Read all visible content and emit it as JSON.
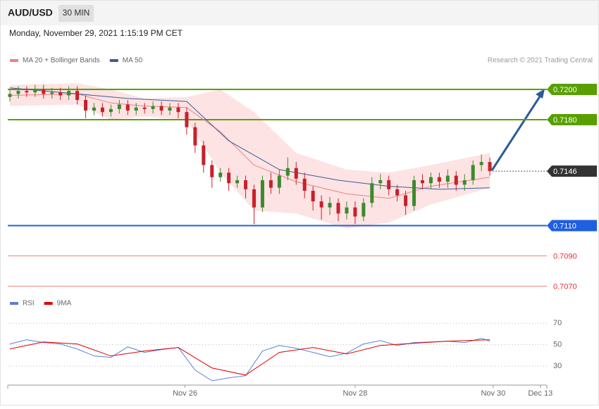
{
  "header": {
    "symbol": "AUD/USD",
    "interval": "30 MIN",
    "timestamp": "Monday, November 29, 2021 1:15:19 PM CET",
    "credit": "Research © 2021 Trading Central"
  },
  "chart_data": [
    {
      "type": "candlestick",
      "x": [
        0,
        1,
        2,
        3,
        4,
        5,
        6,
        7,
        8,
        9,
        10,
        11,
        12,
        13,
        14,
        15,
        16,
        17,
        18,
        19,
        20,
        21,
        22,
        23,
        24,
        25,
        26,
        27,
        28,
        29,
        30,
        31,
        32,
        33,
        34,
        35,
        36,
        37,
        38,
        39,
        40,
        41,
        42,
        43,
        44,
        45,
        46,
        47,
        48,
        49,
        50,
        51,
        52,
        53,
        54,
        55,
        56,
        57
      ],
      "open": [
        0.7195,
        0.7197,
        0.7199,
        0.7198,
        0.72,
        0.7197,
        0.7198,
        0.7196,
        0.7199,
        0.7193,
        0.7186,
        0.7188,
        0.7185,
        0.7187,
        0.719,
        0.7186,
        0.7188,
        0.7187,
        0.7189,
        0.7186,
        0.7188,
        0.7185,
        0.7175,
        0.7163,
        0.715,
        0.7142,
        0.7145,
        0.7138,
        0.714,
        0.7134,
        0.7122,
        0.714,
        0.7135,
        0.7143,
        0.7148,
        0.7141,
        0.7133,
        0.7126,
        0.7122,
        0.7125,
        0.7118,
        0.7122,
        0.7116,
        0.7125,
        0.7138,
        0.714,
        0.7134,
        0.713,
        0.7123,
        0.714,
        0.7138,
        0.7142,
        0.7139,
        0.7143,
        0.7137,
        0.714,
        0.715,
        0.7152
      ],
      "high": [
        0.72,
        0.7202,
        0.7202,
        0.7203,
        0.7203,
        0.7201,
        0.7201,
        0.7202,
        0.7202,
        0.7196,
        0.7191,
        0.7191,
        0.719,
        0.7193,
        0.7193,
        0.7191,
        0.7191,
        0.7192,
        0.7192,
        0.7191,
        0.7191,
        0.7188,
        0.7178,
        0.7166,
        0.7153,
        0.7148,
        0.7148,
        0.7143,
        0.7143,
        0.7137,
        0.7143,
        0.7145,
        0.7147,
        0.7155,
        0.7152,
        0.7145,
        0.7136,
        0.713,
        0.7129,
        0.7128,
        0.7126,
        0.7126,
        0.7128,
        0.7142,
        0.7144,
        0.7143,
        0.7137,
        0.7133,
        0.7143,
        0.7144,
        0.7145,
        0.7145,
        0.7147,
        0.7146,
        0.7144,
        0.7153,
        0.7157,
        0.7155
      ],
      "low": [
        0.7192,
        0.7194,
        0.7195,
        0.7195,
        0.7194,
        0.7194,
        0.7193,
        0.7193,
        0.719,
        0.7181,
        0.7183,
        0.7182,
        0.7182,
        0.7184,
        0.7183,
        0.7183,
        0.7184,
        0.7184,
        0.7183,
        0.7183,
        0.7181,
        0.717,
        0.7158,
        0.7145,
        0.7135,
        0.7139,
        0.7133,
        0.7135,
        0.7128,
        0.7111,
        0.7119,
        0.7131,
        0.7131,
        0.714,
        0.7137,
        0.7128,
        0.712,
        0.7114,
        0.7117,
        0.7113,
        0.7114,
        0.7111,
        0.7113,
        0.7122,
        0.7134,
        0.713,
        0.7126,
        0.7117,
        0.712,
        0.7134,
        0.7134,
        0.7135,
        0.7135,
        0.7133,
        0.7133,
        0.7137,
        0.7146,
        0.7143
      ],
      "close": [
        0.7197,
        0.7199,
        0.7198,
        0.72,
        0.7197,
        0.7198,
        0.7196,
        0.7199,
        0.7193,
        0.7186,
        0.7188,
        0.7185,
        0.7187,
        0.719,
        0.7186,
        0.7188,
        0.7187,
        0.7189,
        0.7186,
        0.7188,
        0.7185,
        0.7175,
        0.7163,
        0.715,
        0.7142,
        0.7145,
        0.7138,
        0.714,
        0.7134,
        0.7122,
        0.714,
        0.7135,
        0.7143,
        0.7148,
        0.7141,
        0.7133,
        0.7126,
        0.7122,
        0.7125,
        0.7118,
        0.7122,
        0.7116,
        0.7125,
        0.7138,
        0.714,
        0.7134,
        0.713,
        0.7123,
        0.714,
        0.7138,
        0.7142,
        0.7139,
        0.7143,
        0.7137,
        0.714,
        0.715,
        0.7152,
        0.7146
      ],
      "up_color": "#3c8a2e",
      "down_color": "#c8202a",
      "series": [
        {
          "name": "MA 20 + Bollinger Bands",
          "color": "#f08080",
          "band_color": "#fde3e3",
          "x": [
            0,
            8,
            12,
            16,
            21,
            25,
            29,
            34,
            40,
            45,
            50,
            57
          ],
          "values": [
            0.7196,
            0.7197,
            0.7191,
            0.7189,
            0.7188,
            0.7172,
            0.715,
            0.7139,
            0.7131,
            0.7128,
            0.7136,
            0.7142
          ],
          "upper": [
            0.7203,
            0.7204,
            0.72,
            0.7194,
            0.7195,
            0.72,
            0.7185,
            0.7158,
            0.7147,
            0.7145,
            0.715,
            0.7158
          ],
          "lower": [
            0.7189,
            0.719,
            0.718,
            0.7182,
            0.718,
            0.7145,
            0.712,
            0.7118,
            0.7108,
            0.7112,
            0.7124,
            0.7135
          ]
        },
        {
          "name": "MA 50",
          "color": "#3b5a9a",
          "x": [
            0,
            14,
            21,
            26,
            32,
            39,
            45,
            51,
            57
          ],
          "values": [
            0.7201,
            0.7194,
            0.7192,
            0.7166,
            0.7147,
            0.714,
            0.7136,
            0.7134,
            0.7135
          ]
        }
      ],
      "levels": [
        {
          "value": 0.72,
          "label": "0.7200",
          "color": "#58a000",
          "line": "solid",
          "tag": true
        },
        {
          "value": 0.718,
          "label": "0.7180",
          "color": "#58a000",
          "line": "solid",
          "tag": true
        },
        {
          "value": 0.7146,
          "label": "0.7146",
          "color": "#333333",
          "line": "dotted",
          "tag": true
        },
        {
          "value": 0.711,
          "label": "0.7110",
          "color": "#1f5fe0",
          "line": "solid",
          "tag": true
        },
        {
          "value": 0.709,
          "label": "0.7090",
          "color": "#e83030",
          "line": "thin",
          "tag": false
        },
        {
          "value": 0.707,
          "label": "0.7070",
          "color": "#e83030",
          "line": "thin",
          "tag": false
        }
      ],
      "xlim": [
        -0.25,
        63.77
      ],
      "ylim": [
        0.7066,
        0.7213
      ]
    },
    {
      "type": "line",
      "series": [
        {
          "name": "RSI",
          "color": "#5b7fd6",
          "x": [
            0,
            2,
            4,
            6,
            8,
            10,
            12,
            14,
            16,
            18,
            20,
            22,
            24,
            26,
            28,
            30,
            32,
            34,
            36,
            38,
            40,
            42,
            44,
            46,
            48,
            50,
            52,
            54,
            56,
            57
          ],
          "values": [
            50.7,
            54.6,
            52,
            50.7,
            46,
            39.5,
            38.2,
            48,
            42.8,
            45.4,
            47.4,
            26.3,
            16.4,
            19.1,
            21.1,
            44.1,
            49.3,
            46.7,
            42.8,
            38.8,
            42.1,
            50.7,
            53.9,
            49.3,
            52,
            52.6,
            53.3,
            52,
            55.9,
            53.3
          ]
        },
        {
          "name": "9MA",
          "color": "#e00000",
          "x": [
            0,
            4,
            8,
            12,
            16,
            20,
            24,
            28,
            32,
            36,
            40,
            44,
            48,
            52,
            57
          ],
          "values": [
            46.1,
            52.6,
            50.7,
            39.5,
            44.1,
            47.4,
            28.3,
            21.7,
            42.8,
            47.4,
            41.4,
            49.3,
            51.3,
            53.3,
            54.6
          ]
        }
      ],
      "xlim": [
        -0.25,
        63.77
      ],
      "ylim": [
        15,
        78
      ],
      "yticks": [
        30,
        50,
        70
      ],
      "xticks": [
        {
          "value": 20.8,
          "label": "Nov 26"
        },
        {
          "value": 41,
          "label": "Nov 28"
        },
        {
          "value": 57.4,
          "label": "Nov 30"
        },
        {
          "value": 63,
          "label": "Dec 13"
        }
      ]
    }
  ]
}
